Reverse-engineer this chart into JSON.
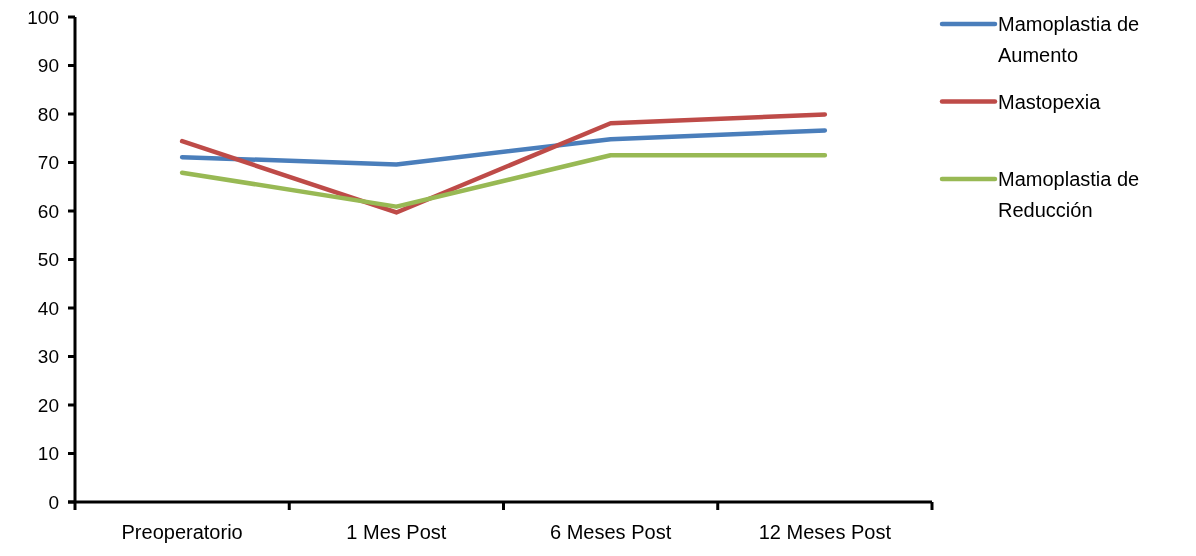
{
  "chart_data": {
    "type": "line",
    "categories": [
      "Preoperatorio",
      "1 Mes Post",
      "6 Meses Post",
      "12 Meses Post"
    ],
    "series": [
      {
        "name": "Mamoplastia de Aumento",
        "color": "#4a7ebb",
        "values": [
          71.1,
          69.6,
          74.8,
          76.6
        ]
      },
      {
        "name": "Mastopexia",
        "color": "#be4b48",
        "values": [
          74.4,
          59.7,
          78.1,
          79.9
        ]
      },
      {
        "name": "Mamoplastia de Reducción",
        "color": "#98b954",
        "values": [
          67.9,
          60.9,
          71.5,
          71.5
        ]
      }
    ],
    "ylim": [
      0,
      100
    ],
    "yticks": [
      0,
      10,
      20,
      30,
      40,
      50,
      60,
      70,
      80,
      90,
      100
    ],
    "grid": false,
    "legend": "right",
    "marker": "none",
    "line_style": "solid"
  }
}
